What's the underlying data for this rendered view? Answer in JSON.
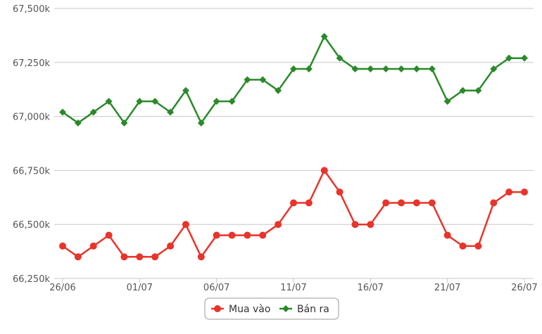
{
  "chart_data": {
    "type": "line",
    "title": "",
    "xlabel": "",
    "ylabel": "",
    "x": [
      "26/06",
      "27/06",
      "28/06",
      "29/06",
      "30/06",
      "01/07",
      "02/07",
      "03/07",
      "04/07",
      "05/07",
      "06/07",
      "07/07",
      "08/07",
      "09/07",
      "10/07",
      "11/07",
      "12/07",
      "13/07",
      "14/07",
      "15/07",
      "16/07",
      "17/07",
      "18/07",
      "19/07",
      "20/07",
      "21/07",
      "22/07",
      "23/07",
      "24/07",
      "25/07",
      "26/07"
    ],
    "x_tick_labels": [
      "26/06",
      "01/07",
      "06/07",
      "11/07",
      "16/07",
      "21/07",
      "26/07"
    ],
    "y_tick_labels": [
      "66,250k",
      "66,500k",
      "66,750k",
      "67,000k",
      "67,250k",
      "67,500k"
    ],
    "y_ticks": [
      66250,
      66500,
      66750,
      67000,
      67250,
      67500
    ],
    "ylim": [
      66250,
      67500
    ],
    "grid": true,
    "legend_position": "bottom-center",
    "series": [
      {
        "name": "Mua vào",
        "color": "#e8342a",
        "marker": "circle",
        "values": [
          66400,
          66350,
          66400,
          66450,
          66350,
          66350,
          66350,
          66400,
          66500,
          66350,
          66450,
          66450,
          66450,
          66450,
          66500,
          66600,
          66600,
          66750,
          66650,
          66500,
          66500,
          66600,
          66600,
          66600,
          66600,
          66450,
          66400,
          66400,
          66600,
          66650,
          66650
        ]
      },
      {
        "name": "Bán ra",
        "color": "#2a8a2a",
        "marker": "diamond",
        "values": [
          67020,
          66970,
          67020,
          67070,
          66970,
          67070,
          67070,
          67020,
          67120,
          66970,
          67070,
          67070,
          67170,
          67170,
          67120,
          67220,
          67220,
          67370,
          67270,
          67220,
          67220,
          67220,
          67220,
          67220,
          67220,
          67070,
          67120,
          67120,
          67220,
          67270,
          67270
        ]
      }
    ]
  }
}
